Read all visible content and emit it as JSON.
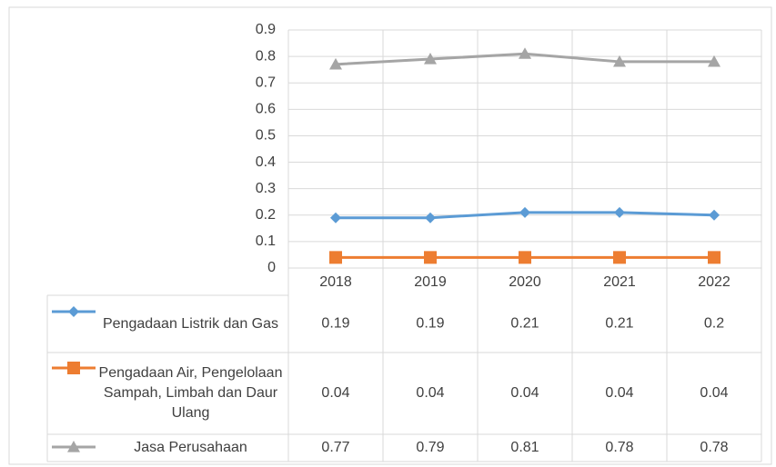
{
  "chart_data": {
    "type": "line",
    "categories": [
      "2018",
      "2019",
      "2020",
      "2021",
      "2022"
    ],
    "series": [
      {
        "name": "Pengadaan Listrik dan Gas",
        "color": "#5b9bd5",
        "marker": "diamond",
        "values": [
          0.19,
          0.19,
          0.21,
          0.21,
          0.2
        ]
      },
      {
        "name": "Pengadaan Air, Pengelolaan Sampah, Limbah dan Daur Ulang",
        "color": "#ed7d31",
        "marker": "square",
        "values": [
          0.04,
          0.04,
          0.04,
          0.04,
          0.04
        ]
      },
      {
        "name": "Jasa Perusahaan",
        "color": "#a5a5a5",
        "marker": "triangle",
        "values": [
          0.77,
          0.79,
          0.81,
          0.78,
          0.78
        ]
      }
    ],
    "ylim": [
      0,
      0.9
    ],
    "yticks": [
      0,
      0.1,
      0.2,
      0.3,
      0.4,
      0.5,
      0.6,
      0.7,
      0.8,
      0.9
    ],
    "grid": true
  }
}
